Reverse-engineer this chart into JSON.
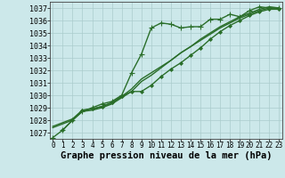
{
  "background_color": "#cce8ea",
  "grid_color": "#aacccc",
  "line_color": "#2a6e2a",
  "marker_color": "#2a6e2a",
  "xlabel": "Graphe pression niveau de la mer (hPa)",
  "xlabel_fontsize": 7.5,
  "xtick_fontsize": 5.5,
  "ytick_fontsize": 6.0,
  "ylim": [
    1026.5,
    1037.5
  ],
  "xlim": [
    -0.3,
    23.3
  ],
  "yticks": [
    1027,
    1028,
    1029,
    1030,
    1031,
    1032,
    1033,
    1034,
    1035,
    1036,
    1037
  ],
  "xticks": [
    0,
    1,
    2,
    3,
    4,
    5,
    6,
    7,
    8,
    9,
    10,
    11,
    12,
    13,
    14,
    15,
    16,
    17,
    18,
    19,
    20,
    21,
    22,
    23
  ],
  "series": [
    {
      "x": [
        0,
        1,
        2,
        3,
        4,
        5,
        6,
        7,
        8,
        9,
        10,
        11,
        12,
        13,
        14,
        15,
        16,
        17,
        18,
        19,
        20,
        21,
        22,
        23
      ],
      "y": [
        1026.6,
        1027.2,
        1028.0,
        1028.7,
        1029.0,
        1029.3,
        1029.5,
        1030.0,
        1031.8,
        1033.3,
        1035.4,
        1035.8,
        1035.7,
        1035.4,
        1035.5,
        1035.5,
        1036.1,
        1036.1,
        1036.5,
        1036.3,
        1036.8,
        1037.1,
        1037.0,
        1037.0
      ],
      "marker": "+"
    },
    {
      "x": [
        0,
        1,
        2,
        3,
        4,
        5,
        6,
        7,
        8,
        9,
        10,
        11,
        12,
        13,
        14,
        15,
        16,
        17,
        18,
        19,
        20,
        21,
        22,
        23
      ],
      "y": [
        1027.5,
        1027.8,
        1028.1,
        1028.8,
        1028.9,
        1029.1,
        1029.4,
        1029.9,
        1030.5,
        1031.3,
        1031.8,
        1032.3,
        1032.8,
        1033.4,
        1033.9,
        1034.4,
        1034.9,
        1035.4,
        1035.8,
        1036.2,
        1036.5,
        1036.8,
        1037.0,
        1037.0
      ],
      "marker": null
    },
    {
      "x": [
        0,
        1,
        2,
        3,
        4,
        5,
        6,
        7,
        8,
        9,
        10,
        11,
        12,
        13,
        14,
        15,
        16,
        17,
        18,
        19,
        20,
        21,
        22,
        23
      ],
      "y": [
        1027.4,
        1027.7,
        1028.0,
        1028.7,
        1028.8,
        1029.0,
        1029.3,
        1029.8,
        1030.3,
        1031.1,
        1031.6,
        1032.2,
        1032.8,
        1033.4,
        1033.9,
        1034.5,
        1035.0,
        1035.5,
        1035.9,
        1036.3,
        1036.6,
        1036.9,
        1037.1,
        1037.0
      ],
      "marker": null
    },
    {
      "x": [
        1,
        2,
        3,
        4,
        5,
        6,
        7,
        8,
        9,
        10,
        11,
        12,
        13,
        14,
        15,
        16,
        17,
        18,
        19,
        20,
        21,
        22,
        23
      ],
      "y": [
        1027.2,
        1028.0,
        1028.8,
        1028.9,
        1029.1,
        1029.4,
        1029.9,
        1030.3,
        1030.3,
        1030.8,
        1031.5,
        1032.1,
        1032.6,
        1033.2,
        1033.8,
        1034.5,
        1035.1,
        1035.6,
        1036.0,
        1036.4,
        1036.7,
        1036.9,
        1036.9
      ],
      "marker": "D"
    }
  ]
}
